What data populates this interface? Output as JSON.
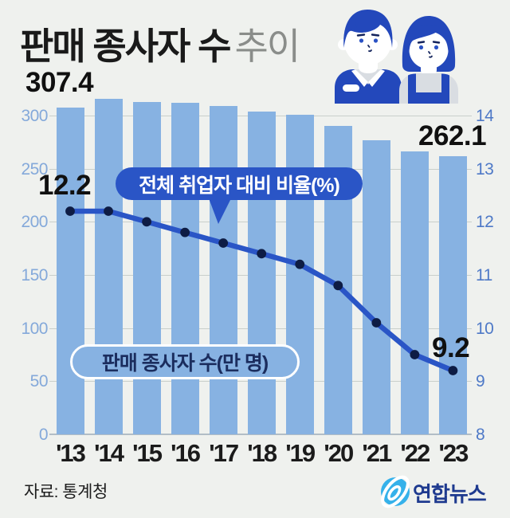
{
  "title": {
    "main": "판매 종사자 수",
    "sub": "추이"
  },
  "annotations": {
    "first_bar_value": "307.4",
    "last_bar_value": "262.1",
    "first_line_value": "12.2",
    "last_line_value": "9.2",
    "line_callout": "전체 취업자 대비 비율(%)",
    "bar_series_label": "판매 종사자 수(만 명)"
  },
  "footer": {
    "source": "자료: 통계청",
    "logo_text": "연합뉴스"
  },
  "icons": [
    "male-worker-icon",
    "female-worker-icon",
    "yonhap-logo-icon"
  ],
  "colors": {
    "background": "#eff1ee",
    "bar": "#87b2e2",
    "line": "#2a55c6",
    "dot": "#0e1c44",
    "axis_label_left": "#84a9da",
    "axis_label_right": "#4e79c7",
    "gridline": "#c9cfcb",
    "callout_bg": "#2a55c6",
    "pill_text": "#1b2d5e",
    "logo_blue": "#35b1ea",
    "logo_navy": "#1e3a8f",
    "figure_blue": "#2348bb",
    "title_gray": "#8a8d8a"
  },
  "chart_data": {
    "type": "bar+line",
    "categories": [
      "'13",
      "'14",
      "'15",
      "'16",
      "'17",
      "'18",
      "'19",
      "'20",
      "'21",
      "'22",
      "'23"
    ],
    "series": [
      {
        "name": "판매 종사자 수(만 명)",
        "type": "bar",
        "axis": "left",
        "values": [
          307.4,
          315.5,
          313.0,
          312.3,
          309.0,
          304.0,
          300.5,
          289.9,
          276.4,
          266.5,
          262.1
        ]
      },
      {
        "name": "전체 취업자 대비 비율(%)",
        "type": "line",
        "axis": "right",
        "values": [
          12.2,
          12.2,
          12.0,
          11.8,
          11.6,
          11.4,
          11.2,
          10.8,
          10.1,
          9.5,
          9.2
        ]
      }
    ],
    "left_axis": {
      "ticks": [
        0,
        50,
        100,
        150,
        200,
        250,
        300
      ],
      "range": [
        0,
        300
      ]
    },
    "right_axis": {
      "ticks": [
        8,
        9,
        10,
        11,
        12,
        13,
        14
      ],
      "range": [
        8,
        14
      ]
    },
    "grid": true,
    "legend_position": "none"
  }
}
